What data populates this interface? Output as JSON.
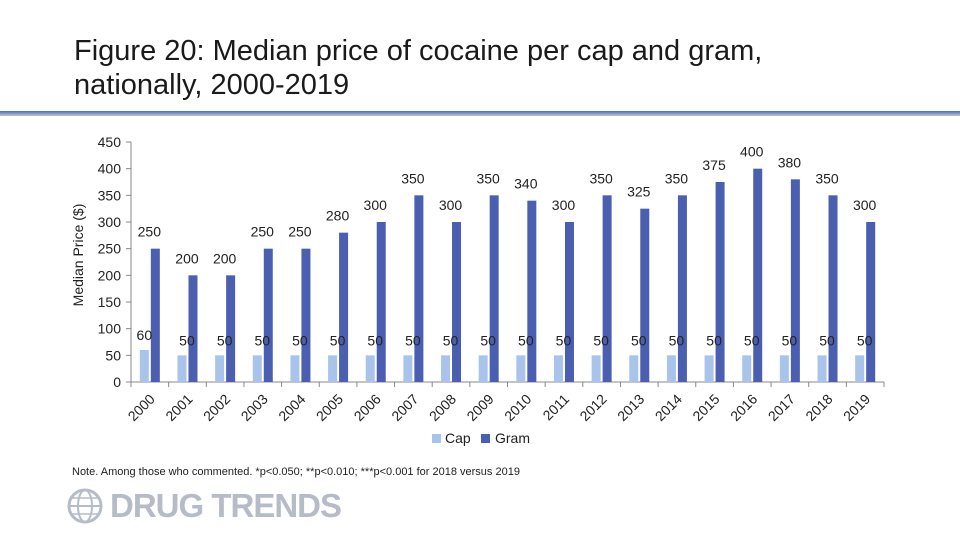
{
  "title": "Figure 20: Median price of cocaine per cap and gram, nationally, 2000-2019",
  "note": "Note. Among those who commented. *p<0.050; **p<0.010; ***p<0.001 for 2018 versus 2019",
  "logo_text": "DRUG TRENDS",
  "colors": {
    "cap": "#a9c4eb",
    "gram": "#4a5fb0",
    "rule": "#4f6fa8",
    "logo": "#b5bcc8"
  },
  "chart_data": {
    "type": "bar",
    "ylabel": "Median Price ($)",
    "ylim": [
      0,
      450
    ],
    "yticks": [
      0,
      50,
      100,
      150,
      200,
      250,
      300,
      350,
      400,
      450
    ],
    "grid": false,
    "legend_position": "bottom",
    "categories": [
      "2000",
      "2001",
      "2002",
      "2003",
      "2004",
      "2005",
      "2006",
      "2007",
      "2008",
      "2009",
      "2010",
      "2011",
      "2012",
      "2013",
      "2014",
      "2015",
      "2016",
      "2017",
      "2018",
      "2019"
    ],
    "series": [
      {
        "name": "Cap",
        "values": [
          60,
          50,
          50,
          50,
          50,
          50,
          50,
          50,
          50,
          50,
          50,
          50,
          50,
          50,
          50,
          50,
          50,
          50,
          50,
          50
        ]
      },
      {
        "name": "Gram",
        "values": [
          250,
          200,
          200,
          250,
          250,
          280,
          300,
          350,
          300,
          350,
          340,
          300,
          350,
          325,
          350,
          375,
          400,
          380,
          350,
          300
        ]
      }
    ]
  }
}
